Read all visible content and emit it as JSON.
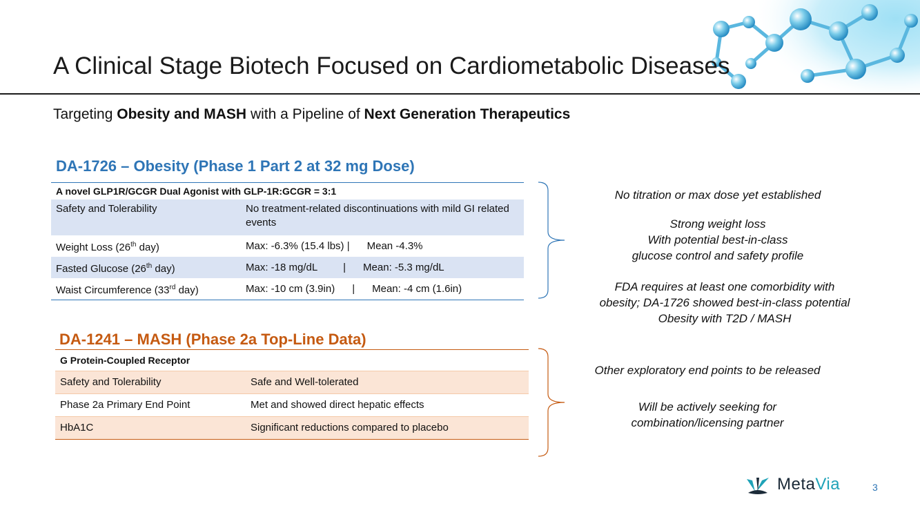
{
  "slide": {
    "title": "A Clinical Stage Biotech Focused on Cardiometabolic Diseases",
    "subtitle": {
      "part1": "Targeting ",
      "bold1": "Obesity and MASH",
      "part2": " with a Pipeline of ",
      "bold2": "Next Generation Therapeutics"
    },
    "page_number": "3"
  },
  "section1": {
    "title": "DA-1726 – Obesity (Phase 1 Part 2 at 32 mg Dose)",
    "header": "A novel GLP1R/GCGR Dual Agonist with GLP-1R:GCGR = 3:1",
    "rows": [
      {
        "label": "Safety and Tolerability",
        "value": "No treatment-related discontinuations with mild GI related events"
      },
      {
        "label_pre": "Weight Loss (26",
        "label_sup": "th",
        "label_post": " day)",
        "value": "Max: -6.3% (15.4 lbs) |      Mean -4.3%"
      },
      {
        "label_pre": "Fasted Glucose (26",
        "label_sup": "th",
        "label_post": " day)",
        "value": "Max: -18 mg/dL         |      Mean: -5.3 mg/dL"
      },
      {
        "label_pre": "Waist Circumference (33",
        "label_sup": "rd",
        "label_post": " day)",
        "value": "Max: -10 cm (3.9in)      |      Mean: -4 cm (1.6in)"
      }
    ],
    "notes": [
      "No titration or max dose yet established",
      "Strong weight loss\nWith potential best-in-class\nglucose control and safety profile",
      "FDA requires at least one comorbidity with\nobesity; DA-1726 showed best-in-class potential\nObesity with T2D / MASH"
    ]
  },
  "section2": {
    "title": "DA-1241 – MASH (Phase 2a Top-Line Data)",
    "header": "G Protein-Coupled Receptor",
    "rows": [
      {
        "label": "Safety and Tolerability",
        "value": "Safe and Well-tolerated"
      },
      {
        "label": "Phase 2a Primary End Point",
        "value": "Met and showed direct hepatic effects"
      },
      {
        "label": "HbA1C",
        "value": "Significant reductions compared to placebo"
      }
    ],
    "notes": [
      "Other exploratory end points to be released",
      "Will be actively seeking for\ncombination/licensing partner"
    ]
  },
  "logo": {
    "name_part1": "Meta",
    "name_part2": "Via",
    "colors": {
      "dark": "#1b2a38",
      "teal": "#1fa3b8"
    }
  },
  "colors": {
    "blue": "#2e75b6",
    "orange": "#c55a11",
    "blue_shade": "#dae3f3",
    "orange_shade": "#fbe5d6"
  }
}
